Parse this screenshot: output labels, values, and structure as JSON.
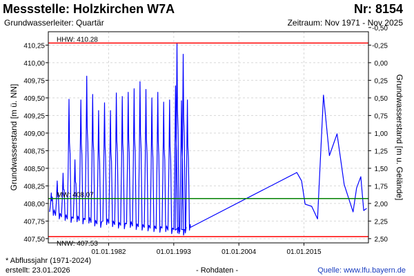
{
  "header": {
    "title_left": "Messstelle: Holzkirchen W7A",
    "title_right": "Nr: 8154",
    "subtitle_left": "Grundwasserleiter: Quartär",
    "subtitle_right": "Zeitraum: Nov 1971 - Nov 2025"
  },
  "footer": {
    "note": "* Abflussjahr (1971-2024)",
    "created": "erstellt:  23.01.2026",
    "raw": "- Rohdaten -",
    "source": "Quelle:  www.lfu.bayern.de"
  },
  "chart_data": {
    "type": "line",
    "ylabel_left": "Grundwasserstand [m ü. NN]",
    "ylabel_right": "Grundwasserstand [m u. Gelände]",
    "xlim": [
      1971.8,
      2025.9
    ],
    "ylim": [
      407.44,
      410.44
    ],
    "right_axis_reference": 410.0,
    "x_tick_labels": [
      {
        "label": "01.01.1982",
        "x": 1982
      },
      {
        "label": "01.01.1993",
        "x": 1993
      },
      {
        "label": "01.01.2004",
        "x": 2004
      },
      {
        "label": "01.01.2015",
        "x": 2015
      }
    ],
    "y_ticks_left": [
      "407,50",
      "407,75",
      "408,00",
      "408,25",
      "408,50",
      "408,75",
      "409,00",
      "409,25",
      "409,50",
      "409,75",
      "410,00",
      "410,25"
    ],
    "y_ticks_left_values": [
      407.5,
      407.75,
      408.0,
      408.25,
      408.5,
      408.75,
      409.0,
      409.25,
      409.5,
      409.75,
      410.0,
      410.25
    ],
    "y_ticks_right": [
      "-0,50",
      "-0,25",
      "0,00",
      "0,25",
      "0,50",
      "0,75",
      "1,00",
      "1,25",
      "1,50",
      "1,75",
      "2,00",
      "2,25",
      "2,50"
    ],
    "y_ticks_right_values": [
      -0.5,
      -0.25,
      0.0,
      0.25,
      0.5,
      0.75,
      1.0,
      1.25,
      1.5,
      1.75,
      2.0,
      2.25,
      2.5
    ],
    "reference_lines": [
      {
        "name": "HHW",
        "label": "HHW: 410.28",
        "value": 410.28,
        "color": "#ff0000"
      },
      {
        "name": "MW",
        "label": "MW: 408.07",
        "value": 408.07,
        "color": "#008000"
      },
      {
        "name": "NNW",
        "label": "NNW: 407.53",
        "value": 407.53,
        "color": "#ff0000"
      }
    ],
    "series": [
      {
        "color": "#0000ff",
        "peaks": [
          {
            "x": 1972.3,
            "y": 408.15
          },
          {
            "x": 1973.3,
            "y": 408.32
          },
          {
            "x": 1974.3,
            "y": 408.43
          },
          {
            "x": 1975.3,
            "y": 409.48
          },
          {
            "x": 1976.3,
            "y": 408.62
          },
          {
            "x": 1977.3,
            "y": 409.47
          },
          {
            "x": 1978.3,
            "y": 409.81
          },
          {
            "x": 1979.3,
            "y": 409.55
          },
          {
            "x": 1980.3,
            "y": 409.32
          },
          {
            "x": 1981.3,
            "y": 409.43
          },
          {
            "x": 1982.3,
            "y": 409.32
          },
          {
            "x": 1983.3,
            "y": 409.57
          },
          {
            "x": 1984.3,
            "y": 409.52
          },
          {
            "x": 1985.3,
            "y": 409.58
          },
          {
            "x": 1986.3,
            "y": 409.63
          },
          {
            "x": 1987.3,
            "y": 409.73
          },
          {
            "x": 1988.3,
            "y": 409.62
          },
          {
            "x": 1989.3,
            "y": 409.5
          },
          {
            "x": 1990.3,
            "y": 409.58
          },
          {
            "x": 1991.3,
            "y": 409.44
          },
          {
            "x": 1992.3,
            "y": 409.47
          },
          {
            "x": 1993.3,
            "y": 409.67
          },
          {
            "x": 1993.55,
            "y": 410.28
          },
          {
            "x": 1994.3,
            "y": 409.46
          },
          {
            "x": 1994.6,
            "y": 410.12
          },
          {
            "x": 1995.3,
            "y": 409.47
          }
        ],
        "troughs": [
          407.83,
          407.78,
          407.76,
          407.73,
          407.74,
          407.71,
          407.72,
          407.68,
          407.66,
          407.7,
          407.67,
          407.65,
          407.64,
          407.66,
          407.63,
          407.62,
          407.61,
          407.6,
          407.59,
          407.6,
          407.57,
          407.58,
          407.57,
          407.55,
          407.58,
          407.62
        ],
        "sparse_points": [
          {
            "x": 1995.8,
            "y": 407.66
          },
          {
            "x": 2013.8,
            "y": 408.44
          },
          {
            "x": 2014.6,
            "y": 408.32
          },
          {
            "x": 2015.2,
            "y": 407.99
          },
          {
            "x": 2016.3,
            "y": 407.96
          },
          {
            "x": 2017.3,
            "y": 407.78
          },
          {
            "x": 2018.3,
            "y": 409.54
          },
          {
            "x": 2019.3,
            "y": 408.68
          },
          {
            "x": 2020.6,
            "y": 408.99
          },
          {
            "x": 2021.8,
            "y": 408.27
          },
          {
            "x": 2023.3,
            "y": 407.88
          },
          {
            "x": 2023.9,
            "y": 408.22
          },
          {
            "x": 2024.6,
            "y": 408.38
          },
          {
            "x": 2025.1,
            "y": 407.9
          },
          {
            "x": 2025.6,
            "y": 407.93
          }
        ]
      }
    ]
  }
}
